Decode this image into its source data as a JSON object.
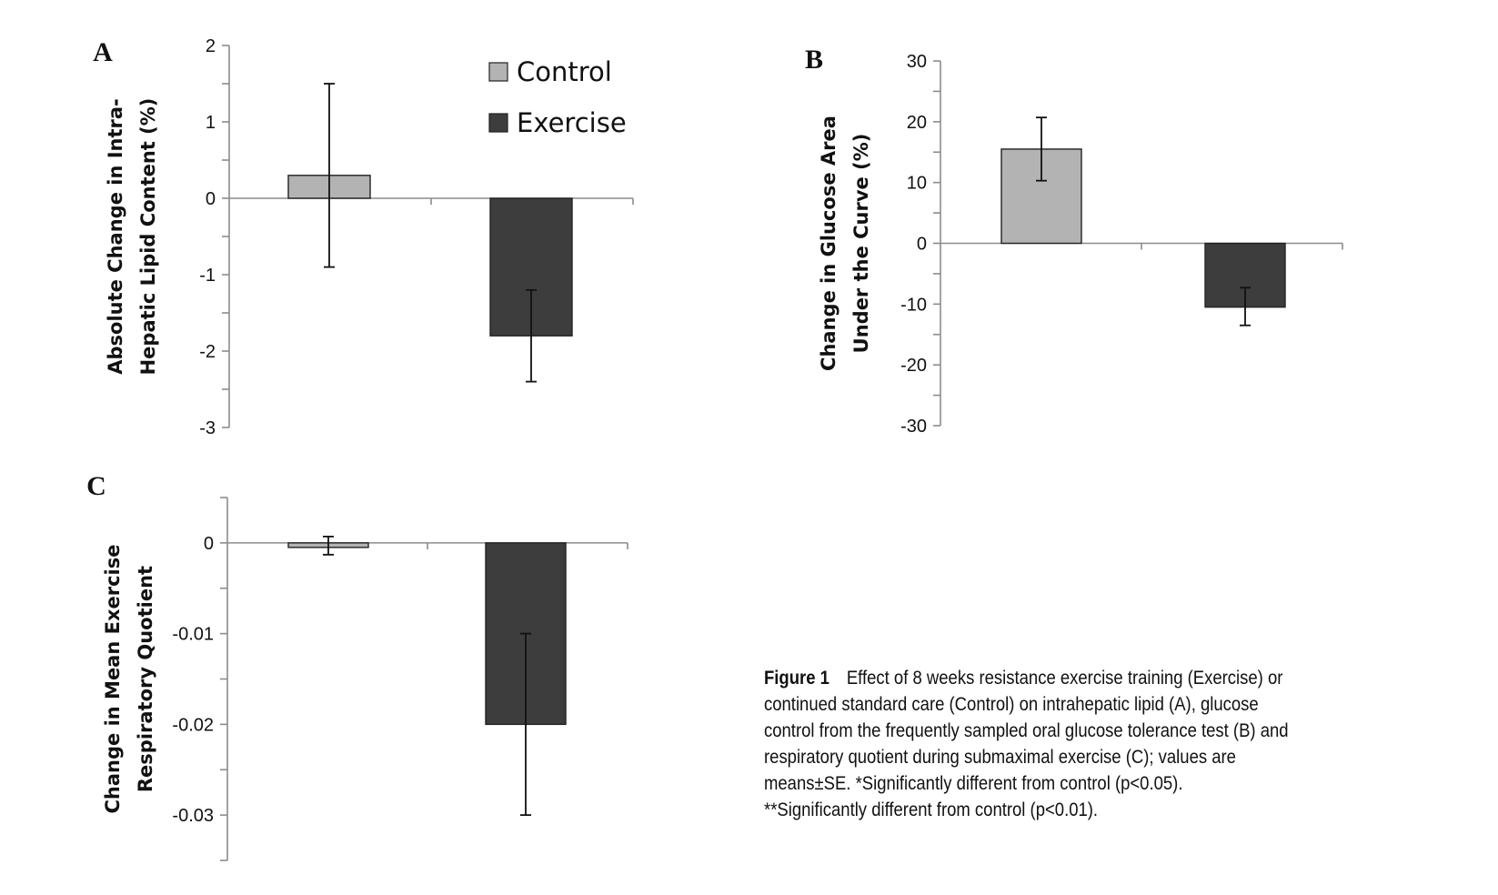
{
  "colors": {
    "control": "#b3b3b3",
    "exercise": "#3d3d3d",
    "axis": "#8c8c8c",
    "error_bar": "#111111"
  },
  "legend": {
    "entries": [
      {
        "label": "Control",
        "color": "#b3b3b3"
      },
      {
        "label": "Exercise",
        "color": "#3d3d3d"
      }
    ],
    "placement": "top-right of panel A"
  },
  "chart_data": [
    {
      "id": "A",
      "panel_label": "A",
      "type": "bar",
      "ylabel": [
        "Absolute Change in Intra-",
        "Hepatic Lipid Content (%)"
      ],
      "ylim": [
        -3,
        2
      ],
      "yticks": [
        2,
        1,
        0,
        -1,
        -2,
        -3
      ],
      "ytick_labels": [
        "2",
        "1",
        "0",
        "-1",
        "-2",
        "-3"
      ],
      "categories": [
        "Control",
        "Exercise"
      ],
      "series": [
        {
          "name": "Control",
          "value": 0.3,
          "error_low": -0.9,
          "error_high": 1.5
        },
        {
          "name": "Exercise",
          "value": -1.8,
          "error_low": -2.4,
          "error_high": -1.2
        }
      ],
      "grid": false
    },
    {
      "id": "B",
      "panel_label": "B",
      "type": "bar",
      "ylabel": [
        "Change in Glucose Area",
        "Under the Curve (%)"
      ],
      "ylim": [
        -30,
        30
      ],
      "yticks": [
        30,
        20,
        10,
        0,
        -10,
        -20,
        -30
      ],
      "ytick_labels": [
        "30",
        "20",
        "10",
        "0",
        "-10",
        "-20",
        "-30"
      ],
      "categories": [
        "Control",
        "Exercise"
      ],
      "series": [
        {
          "name": "Control",
          "value": 15.5,
          "error_low": 10.3,
          "error_high": 20.7
        },
        {
          "name": "Exercise",
          "value": -10.5,
          "error_low": -13.5,
          "error_high": -7.3
        }
      ],
      "grid": false
    },
    {
      "id": "C",
      "panel_label": "C",
      "type": "bar",
      "ylabel": [
        "Change in Mean Exercise",
        "Respiratory Quotient"
      ],
      "ylim": [
        -0.035,
        0.005
      ],
      "yticks": [
        0,
        -0.01,
        -0.02,
        -0.03
      ],
      "ytick_labels": [
        "0",
        "-0.01",
        "-0.02",
        "-0.03"
      ],
      "minor_yticks": [
        0.005,
        -0.005,
        -0.015,
        -0.025,
        -0.035
      ],
      "categories": [
        "Control",
        "Exercise"
      ],
      "series": [
        {
          "name": "Control",
          "value": -0.0005,
          "error_low": -0.0013,
          "error_high": 0.0007
        },
        {
          "name": "Exercise",
          "value": -0.02,
          "error_low": -0.03,
          "error_high": -0.01
        }
      ],
      "grid": false
    }
  ],
  "caption": {
    "label": "Figure 1",
    "lines": [
      "Effect of 8 weeks resistance exercise training (Exercise) or",
      "continued standard care (Control) on intrahepatic lipid (A), glucose",
      "control from the frequently sampled oral glucose tolerance test (B) and",
      "respiratory quotient during submaximal exercise (C); values are",
      "means±SE. *Significantly different from control (p<0.05).",
      "**Significantly different from control (p<0.01)."
    ]
  }
}
